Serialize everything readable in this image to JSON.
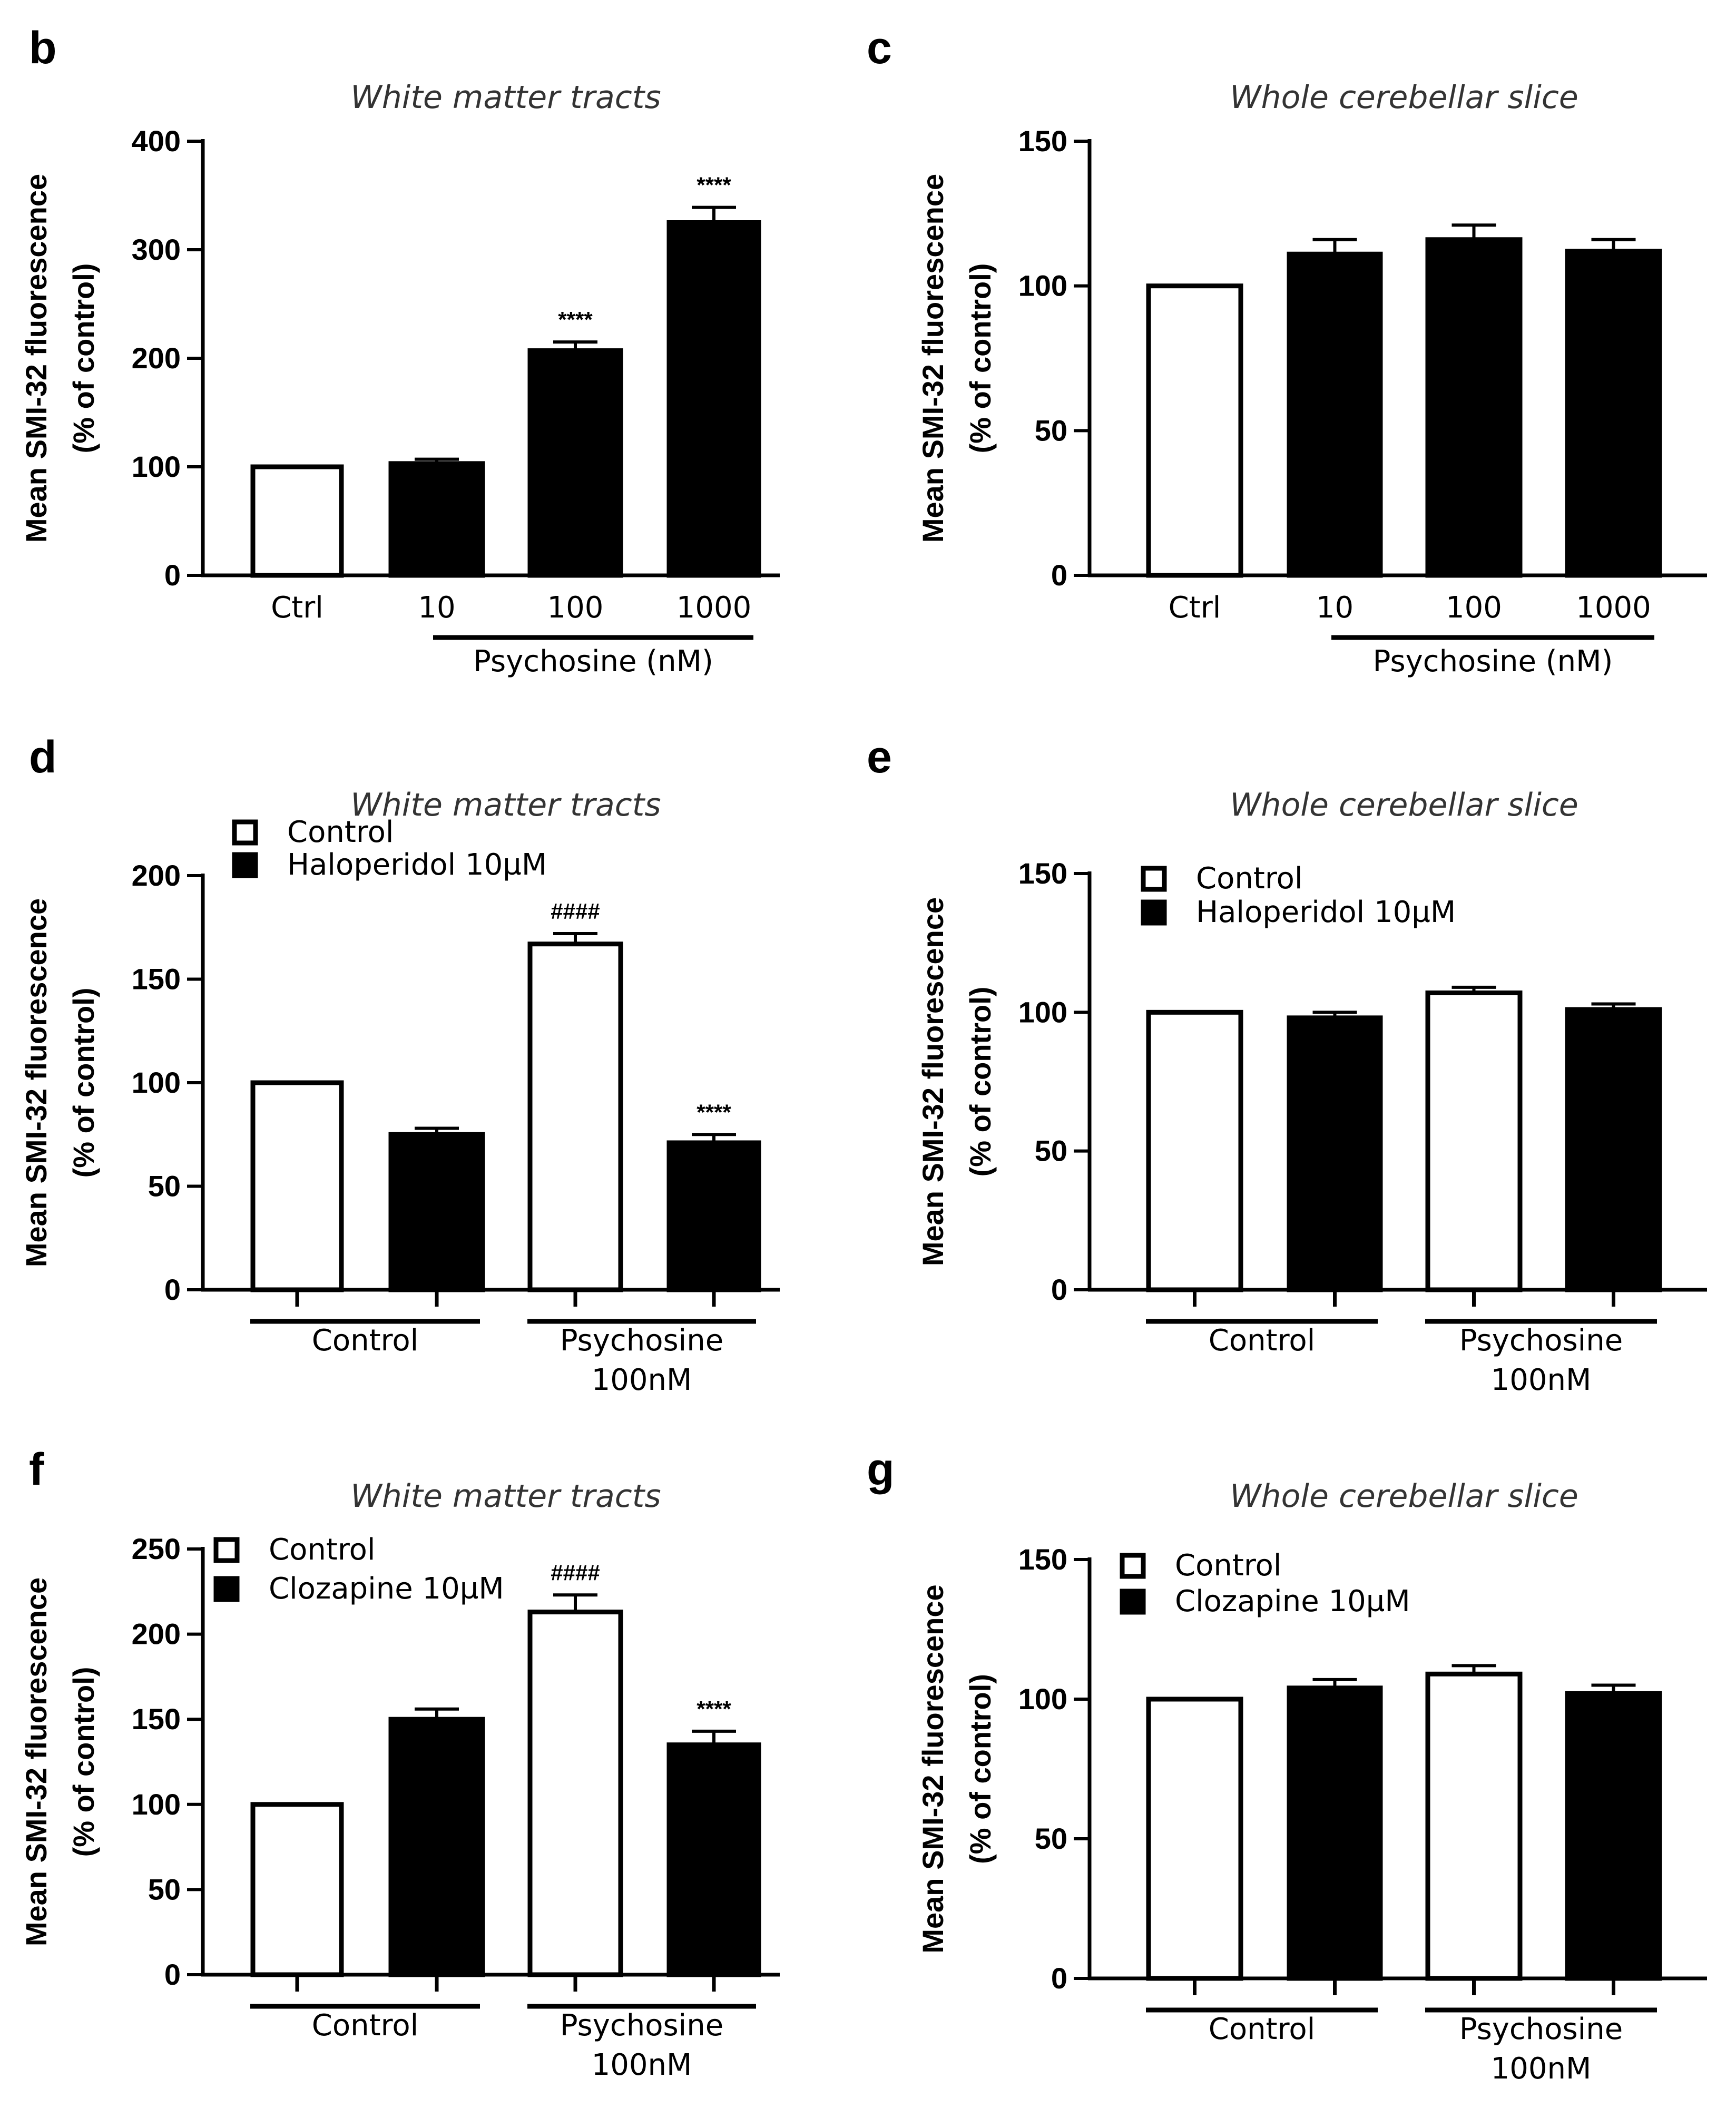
{
  "chart_data": [
    {
      "id": "b",
      "letter": "b",
      "type": "bar",
      "title": "White matter tracts",
      "ylabel_line1": "Mean SMI-32  fluorescence",
      "ylabel_line2": "(% of control)",
      "ylim": [
        0,
        400
      ],
      "yticks": [
        "0",
        "100",
        "200",
        "300",
        "400"
      ],
      "categories": [
        "Ctrl",
        "10",
        "100",
        "1000"
      ],
      "values": [
        100,
        103,
        207,
        325
      ],
      "errors": [
        0,
        4,
        8,
        14
      ],
      "fills": [
        "white",
        "black",
        "black",
        "black"
      ],
      "annotations": [
        "",
        "",
        "****",
        "****"
      ],
      "group_label": "Psychosine (nM)",
      "legend": []
    },
    {
      "id": "c",
      "letter": "c",
      "type": "bar",
      "title": "Whole cerebellar slice",
      "ylabel_line1": "Mean SMI-32  fluorescence",
      "ylabel_line2": "(% of control)",
      "ylim": [
        0,
        150
      ],
      "yticks": [
        "0",
        "50",
        "100",
        "150"
      ],
      "categories": [
        "Ctrl",
        "10",
        "100",
        "1000"
      ],
      "values": [
        100,
        111,
        116,
        112
      ],
      "errors": [
        0,
        5,
        5,
        4
      ],
      "fills": [
        "white",
        "black",
        "black",
        "black"
      ],
      "annotations": [
        "",
        "",
        "",
        ""
      ],
      "group_label": "Psychosine (nM)",
      "legend": []
    },
    {
      "id": "d",
      "letter": "d",
      "type": "bar",
      "title": "White matter tracts",
      "ylabel_line1": "Mean SMI-32  fluorescence",
      "ylabel_line2": "(% of control)",
      "ylim": [
        0,
        200
      ],
      "yticks": [
        "0",
        "50",
        "100",
        "150",
        "200"
      ],
      "values": [
        100,
        75,
        167,
        71
      ],
      "errors": [
        0,
        3,
        5,
        4
      ],
      "fills": [
        "white",
        "black",
        "white",
        "black"
      ],
      "annotations": [
        "",
        "",
        "####",
        "****"
      ],
      "groups": [
        "Control",
        "Psychosine",
        "100nM"
      ],
      "legend": [
        "Control",
        "Haloperidol 10µM"
      ]
    },
    {
      "id": "e",
      "letter": "e",
      "type": "bar",
      "title": "Whole cerebellar slice",
      "ylabel_line1": "Mean SMI-32  fluorescence",
      "ylabel_line2": "(% of control)",
      "ylim": [
        0,
        150
      ],
      "yticks": [
        "0",
        "50",
        "100",
        "150"
      ],
      "values": [
        100,
        98,
        107,
        101
      ],
      "errors": [
        0,
        2,
        2,
        2
      ],
      "fills": [
        "white",
        "black",
        "white",
        "black"
      ],
      "annotations": [
        "",
        "",
        "",
        ""
      ],
      "groups": [
        "Control",
        "Psychosine",
        "100nM"
      ],
      "legend": [
        "Control",
        "Haloperidol 10µM"
      ]
    },
    {
      "id": "f",
      "letter": "f",
      "type": "bar",
      "title": "White matter tracts",
      "ylabel_line1": "Mean SMI-32  fluorescence",
      "ylabel_line2": "(% of control)",
      "ylim": [
        0,
        250
      ],
      "yticks": [
        "0",
        "50",
        "100",
        "150",
        "200",
        "250"
      ],
      "values": [
        100,
        150,
        213,
        135
      ],
      "errors": [
        0,
        6,
        10,
        8
      ],
      "fills": [
        "white",
        "black",
        "white",
        "black"
      ],
      "annotations": [
        "",
        "",
        "####",
        "****"
      ],
      "groups": [
        "Control",
        "Psychosine",
        "100nM"
      ],
      "legend": [
        "Control",
        "Clozapine 10µM"
      ]
    },
    {
      "id": "g",
      "letter": "g",
      "type": "bar",
      "title": "Whole cerebellar slice",
      "ylabel_line1": "Mean SMI-32  fluorescence",
      "ylabel_line2": "(% of control)",
      "ylim": [
        0,
        150
      ],
      "yticks": [
        "0",
        "50",
        "100",
        "150"
      ],
      "values": [
        100,
        104,
        109,
        102
      ],
      "errors": [
        0,
        3,
        3,
        3
      ],
      "fills": [
        "white",
        "black",
        "white",
        "black"
      ],
      "annotations": [
        "",
        "",
        "",
        ""
      ],
      "groups": [
        "Control",
        "Psychosine",
        "100nM"
      ],
      "legend": [
        "Control",
        "Clozapine 10µM"
      ]
    }
  ]
}
